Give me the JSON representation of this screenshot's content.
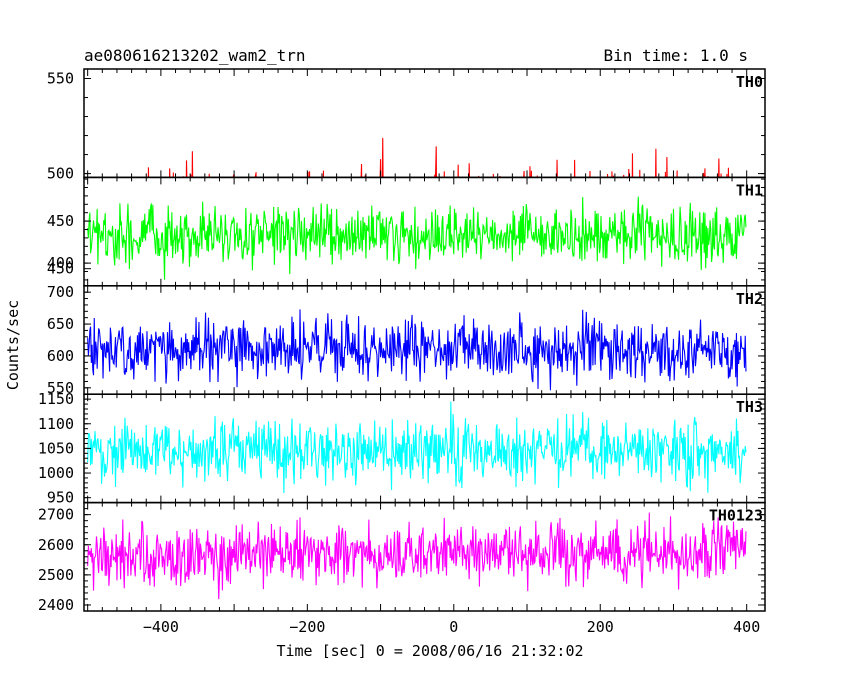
{
  "header": {
    "title": "ae080616213202_wam2_trn",
    "bin_time": "Bin time: 1.0 s"
  },
  "chart_data": {
    "type": "line",
    "title": "ae080616213202_wam2_trn",
    "subtitle": "Bin time: 1.0 s",
    "xlabel": "Time [sec] 0 = 2008/06/16 21:32:02",
    "ylabel": "Counts/sec",
    "xlim": [
      -505,
      425
    ],
    "xticks": [
      -400,
      -200,
      0,
      200,
      400
    ],
    "x_range_data": [
      -500,
      399
    ],
    "bin_time_s": 1.0,
    "panels": [
      {
        "name": "TH0",
        "color": "#ff0000",
        "ylim": [
          498,
          555
        ],
        "yticks": [
          450,
          500,
          550
        ],
        "mean": 477,
        "spread": 14,
        "trend": 0.008
      },
      {
        "name": "TH1",
        "color": "#00ff00",
        "ylim": [
          373,
          502
        ],
        "yticks": [
          400,
          450
        ],
        "mean": 432,
        "spread": 17,
        "trend": 0
      },
      {
        "name": "TH2",
        "color": "#0000ff",
        "ylim": [
          540,
          710
        ],
        "yticks": [
          550,
          600,
          650,
          700
        ],
        "mean": 610,
        "spread": 24,
        "trend": 0
      },
      {
        "name": "TH3",
        "color": "#00ffff",
        "ylim": [
          940,
          1160
        ],
        "yticks": [
          950,
          1000,
          1050,
          1100,
          1150
        ],
        "mean": 1045,
        "spread": 32,
        "trend": 0
      },
      {
        "name": "TH0123",
        "color": "#ff00ff",
        "ylim": [
          2380,
          2740
        ],
        "yticks": [
          2400,
          2500,
          2600,
          2700
        ],
        "mean": 2570,
        "spread": 50,
        "trend": 0.03
      }
    ]
  }
}
